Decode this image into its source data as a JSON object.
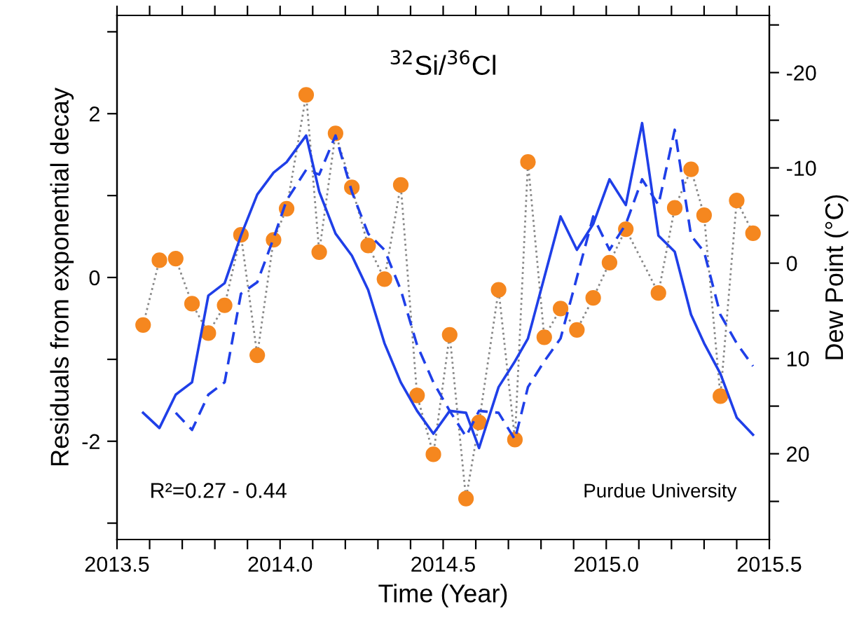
{
  "chart_data": {
    "type": "line",
    "title": "$^{32}$Si/$^{36}$Cl",
    "xlabel": "Time (Year)",
    "ylabel": "Residuals from exponential decay",
    "y2label": "Dew Point (°C)",
    "annotations": [
      "R²=0.27 - 0.44",
      "Purdue University"
    ],
    "xlim": [
      2013.5,
      2015.5
    ],
    "xticks": [
      {
        "value": 2013.5,
        "label": "2013.5"
      },
      {
        "value": 2013.6,
        "label": null
      },
      {
        "value": 2013.7,
        "label": null
      },
      {
        "value": 2013.8,
        "label": null
      },
      {
        "value": 2013.9,
        "label": null
      },
      {
        "value": 2014,
        "label": "2014.0"
      },
      {
        "value": 2014.1,
        "label": null
      },
      {
        "value": 2014.2,
        "label": null
      },
      {
        "value": 2014.3,
        "label": null
      },
      {
        "value": 2014.4,
        "label": null
      },
      {
        "value": 2014.5,
        "label": "2014.5"
      },
      {
        "value": 2014.6,
        "label": null
      },
      {
        "value": 2014.7,
        "label": null
      },
      {
        "value": 2014.8,
        "label": null
      },
      {
        "value": 2014.9,
        "label": null
      },
      {
        "value": 2015,
        "label": "2015.0"
      },
      {
        "value": 2015.1,
        "label": null
      },
      {
        "value": 2015.2,
        "label": null
      },
      {
        "value": 2015.3,
        "label": null
      },
      {
        "value": 2015.4,
        "label": null
      },
      {
        "value": 2015.5,
        "label": "2015.5"
      }
    ],
    "ylim": [
      -3.2,
      3.2
    ],
    "yticks": [
      {
        "value": -3,
        "label": null
      },
      -2,
      {
        "value": -1,
        "label": null
      },
      0,
      {
        "value": 1,
        "label": null
      },
      2,
      {
        "value": 3,
        "label": null
      }
    ],
    "y2lim": [
      29,
      -26
    ],
    "y2ticks": [
      {
        "value": -25,
        "label": null
      },
      -20,
      {
        "value": -15,
        "label": null
      },
      -10,
      {
        "value": -5,
        "label": null
      },
      0,
      {
        "value": 5,
        "label": null
      },
      10,
      {
        "value": 15,
        "label": null
      },
      20,
      {
        "value": 25,
        "label": null
      }
    ],
    "grid": false,
    "series": [
      {
        "marker": "circle",
        "line_style": "dotted",
        "color": "#f5871f",
        "x": [
          2013.58,
          2013.63,
          2013.68,
          2013.73,
          2013.78,
          2013.83,
          2013.88,
          2013.93,
          2013.98,
          2014.02,
          2014.08,
          2014.12,
          2014.17,
          2014.22,
          2014.27,
          2014.32,
          2014.37,
          2014.42,
          2014.47,
          2014.52,
          2014.57,
          2014.61,
          2014.67,
          2014.72,
          2014.76,
          2014.81,
          2014.86,
          2014.91,
          2014.96,
          2015.01,
          2015.06,
          2015.16,
          2015.21,
          2015.26,
          2015.3,
          2015.35,
          2015.4,
          2015.45
        ],
        "values": [
          -0.58,
          0.21,
          0.23,
          -0.32,
          -0.68,
          -0.34,
          0.52,
          -0.95,
          0.46,
          0.84,
          2.23,
          0.31,
          1.76,
          1.1,
          0.39,
          -0.02,
          1.13,
          -1.44,
          -2.16,
          -0.7,
          -2.7,
          -1.77,
          -0.15,
          -1.98,
          1.41,
          -0.73,
          -0.38,
          -0.64,
          -0.25,
          0.18,
          0.59,
          -0.19,
          0.85,
          1.32,
          0.76,
          -1.45,
          0.94,
          0.54
        ]
      },
      {
        "axis": "y2",
        "marker": "none",
        "line_style": "solid",
        "color": "#1f3fe8",
        "x": [
          2013.58,
          2013.63,
          2013.68,
          2013.73,
          2013.78,
          2013.83,
          2013.88,
          2013.93,
          2013.98,
          2014.02,
          2014.08,
          2014.12,
          2014.17,
          2014.22,
          2014.27,
          2014.32,
          2014.37,
          2014.42,
          2014.47,
          2014.52,
          2014.57,
          2014.61,
          2014.67,
          2014.72,
          2014.76,
          2014.81,
          2014.86,
          2014.91,
          2014.96,
          2015.01,
          2015.06,
          2015.11,
          2015.16,
          2015.21,
          2015.26,
          2015.3,
          2015.35,
          2015.4,
          2015.45
        ],
        "values": [
          15.7,
          17.3,
          13.8,
          12.5,
          3.4,
          2.1,
          -2.9,
          -7.2,
          -9.5,
          -10.6,
          -13.4,
          -7.5,
          -3.1,
          -0.8,
          2.8,
          8.4,
          12.5,
          15.5,
          17.9,
          15.5,
          15.7,
          19.4,
          13.0,
          10.3,
          7.9,
          1.5,
          -4.9,
          -1.4,
          -4.1,
          -8.8,
          -6.1,
          -14.7,
          -2.9,
          -1.2,
          5.4,
          8.4,
          11.6,
          16.2,
          18.0
        ]
      },
      {
        "axis": "y2",
        "marker": "none",
        "line_style": "dashed",
        "color": "#1f3fe8",
        "x": [
          2013.68,
          2013.73,
          2013.78,
          2013.83,
          2013.88,
          2013.93,
          2013.98,
          2014.02,
          2014.08,
          2014.12,
          2014.17,
          2014.22,
          2014.27,
          2014.32,
          2014.37,
          2014.42,
          2014.47,
          2014.52,
          2014.57,
          2014.61,
          2014.67,
          2014.72,
          2014.76,
          2014.81,
          2014.86,
          2014.91,
          2014.96,
          2015.01,
          2015.06,
          2015.11,
          2015.16,
          2015.21,
          2015.26,
          2015.3,
          2015.35,
          2015.4,
          2015.45
        ],
        "values": [
          15.7,
          17.5,
          13.8,
          12.5,
          3.2,
          2.0,
          -2.6,
          -6.6,
          -9.8,
          -9.3,
          -13.4,
          -7.5,
          -3.1,
          -1.4,
          2.8,
          8.6,
          12.5,
          15.5,
          18.2,
          15.5,
          15.7,
          18.5,
          13.0,
          10.3,
          7.9,
          1.5,
          -4.9,
          -1.4,
          -4.1,
          -8.8,
          -6.1,
          -14.0,
          -2.9,
          -1.2,
          5.4,
          8.4,
          10.8
        ]
      }
    ]
  }
}
